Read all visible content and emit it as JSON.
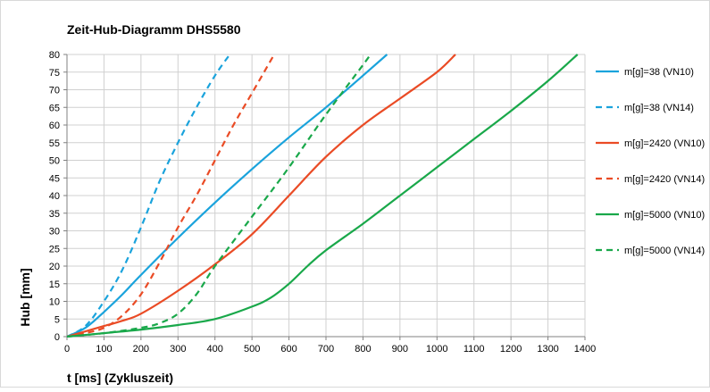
{
  "chart_data": {
    "type": "line",
    "title": "Zeit-Hub-Diagramm DHS5580",
    "xlabel": "t [ms] (Zykluszeit)",
    "ylabel": "Hub [mm]",
    "xlim": [
      0,
      1400
    ],
    "ylim": [
      0,
      80
    ],
    "x_ticks": [
      0,
      100,
      200,
      300,
      400,
      500,
      600,
      700,
      800,
      900,
      1000,
      1100,
      1200,
      1300,
      1400
    ],
    "y_ticks": [
      0,
      5,
      10,
      15,
      20,
      25,
      30,
      35,
      40,
      45,
      50,
      55,
      60,
      65,
      70,
      75,
      80
    ],
    "x_tick_labels": [
      "0",
      "100",
      "200",
      "300",
      "400",
      "500",
      "600",
      "700",
      "800",
      "900",
      "1000",
      "1100",
      "1200",
      "1300",
      "1400"
    ],
    "y_tick_labels": [
      "0",
      "5",
      "10",
      "15",
      "20",
      "25",
      "30",
      "35",
      "40",
      "45",
      "50",
      "55",
      "60",
      "65",
      "70",
      "75",
      "80"
    ],
    "grid": true,
    "legend_position": "right",
    "series": [
      {
        "name": "m[g]=38 (VN10)",
        "color": "#1aa3dc",
        "dash": "solid",
        "points": [
          [
            0,
            0
          ],
          [
            50,
            2.5
          ],
          [
            100,
            7
          ],
          [
            150,
            12
          ],
          [
            200,
            17.5
          ],
          [
            300,
            28
          ],
          [
            400,
            38
          ],
          [
            500,
            47.5
          ],
          [
            600,
            56.5
          ],
          [
            700,
            65
          ],
          [
            800,
            74
          ],
          [
            865,
            80
          ]
        ]
      },
      {
        "name": "m[g]=38 (VN14)",
        "color": "#1aa3dc",
        "dash": "dashed",
        "points": [
          [
            0,
            0
          ],
          [
            50,
            3
          ],
          [
            100,
            10
          ],
          [
            150,
            19
          ],
          [
            200,
            31
          ],
          [
            250,
            44
          ],
          [
            300,
            55
          ],
          [
            350,
            65
          ],
          [
            400,
            74
          ],
          [
            440,
            80
          ]
        ]
      },
      {
        "name": "m[g]=2420 (VN10)",
        "color": "#ea4b25",
        "dash": "solid",
        "points": [
          [
            0,
            0
          ],
          [
            50,
            1.5
          ],
          [
            100,
            3
          ],
          [
            150,
            4.5
          ],
          [
            200,
            6.5
          ],
          [
            300,
            13
          ],
          [
            400,
            20.5
          ],
          [
            500,
            29
          ],
          [
            600,
            40
          ],
          [
            700,
            51
          ],
          [
            800,
            60
          ],
          [
            900,
            67.5
          ],
          [
            1000,
            75
          ],
          [
            1050,
            80
          ]
        ]
      },
      {
        "name": "m[g]=2420 (VN14)",
        "color": "#ea4b25",
        "dash": "dashed",
        "points": [
          [
            0,
            0
          ],
          [
            50,
            1
          ],
          [
            100,
            2.5
          ],
          [
            150,
            6
          ],
          [
            200,
            12
          ],
          [
            250,
            21
          ],
          [
            300,
            31
          ],
          [
            350,
            40
          ],
          [
            400,
            50
          ],
          [
            450,
            60
          ],
          [
            500,
            69
          ],
          [
            560,
            80
          ]
        ]
      },
      {
        "name": "m[g]=5000 (VN10)",
        "color": "#19a84a",
        "dash": "solid",
        "points": [
          [
            0,
            0
          ],
          [
            100,
            1
          ],
          [
            200,
            2
          ],
          [
            300,
            3.3
          ],
          [
            400,
            5
          ],
          [
            500,
            8.5
          ],
          [
            550,
            11
          ],
          [
            600,
            15
          ],
          [
            650,
            20
          ],
          [
            700,
            24.5
          ],
          [
            800,
            32
          ],
          [
            900,
            40
          ],
          [
            1000,
            48
          ],
          [
            1100,
            56
          ],
          [
            1200,
            64
          ],
          [
            1300,
            72.5
          ],
          [
            1380,
            80
          ]
        ]
      },
      {
        "name": "m[g]=5000 (VN14)",
        "color": "#19a84a",
        "dash": "dashed",
        "points": [
          [
            0,
            0
          ],
          [
            100,
            1
          ],
          [
            200,
            2.5
          ],
          [
            250,
            3.8
          ],
          [
            300,
            6.5
          ],
          [
            350,
            12
          ],
          [
            400,
            20
          ],
          [
            500,
            34
          ],
          [
            600,
            48
          ],
          [
            700,
            63
          ],
          [
            800,
            77
          ],
          [
            820,
            80
          ]
        ]
      }
    ]
  }
}
